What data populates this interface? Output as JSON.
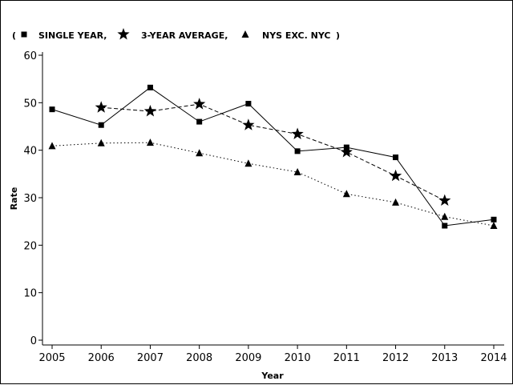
{
  "chart_data": {
    "type": "line",
    "title": "",
    "xlabel": "Year",
    "ylabel": "Rate",
    "x": [
      2005,
      2006,
      2007,
      2008,
      2009,
      2010,
      2011,
      2012,
      2013,
      2014
    ],
    "xlim": [
      2005,
      2014
    ],
    "ylim": [
      0,
      60
    ],
    "y_ticks": [
      0,
      10,
      20,
      30,
      40,
      50,
      60
    ],
    "legend_position": "top-left",
    "legend_open": "(",
    "legend_close": ")",
    "series": [
      {
        "name": "SINGLE YEAR,",
        "marker": "square",
        "line": "solid",
        "x": [
          2005,
          2006,
          2007,
          2008,
          2009,
          2010,
          2011,
          2012,
          2013,
          2014
        ],
        "values": [
          48.6,
          45.3,
          53.2,
          46.0,
          49.8,
          39.8,
          40.6,
          38.5,
          24.1,
          25.4
        ]
      },
      {
        "name": "3-YEAR AVERAGE,",
        "marker": "star",
        "line": "dashed",
        "x": [
          2006,
          2007,
          2008,
          2009,
          2010,
          2011,
          2012,
          2013
        ],
        "values": [
          49.0,
          48.2,
          49.7,
          45.3,
          43.4,
          39.6,
          34.6,
          29.4
        ]
      },
      {
        "name": "NYS EXC. NYC",
        "marker": "triangle",
        "line": "dotted",
        "x": [
          2005,
          2006,
          2007,
          2008,
          2009,
          2010,
          2011,
          2012,
          2013,
          2014
        ],
        "values": [
          40.9,
          41.5,
          41.6,
          39.4,
          37.2,
          35.4,
          30.8,
          29.0,
          26.0,
          24.1
        ]
      }
    ]
  }
}
